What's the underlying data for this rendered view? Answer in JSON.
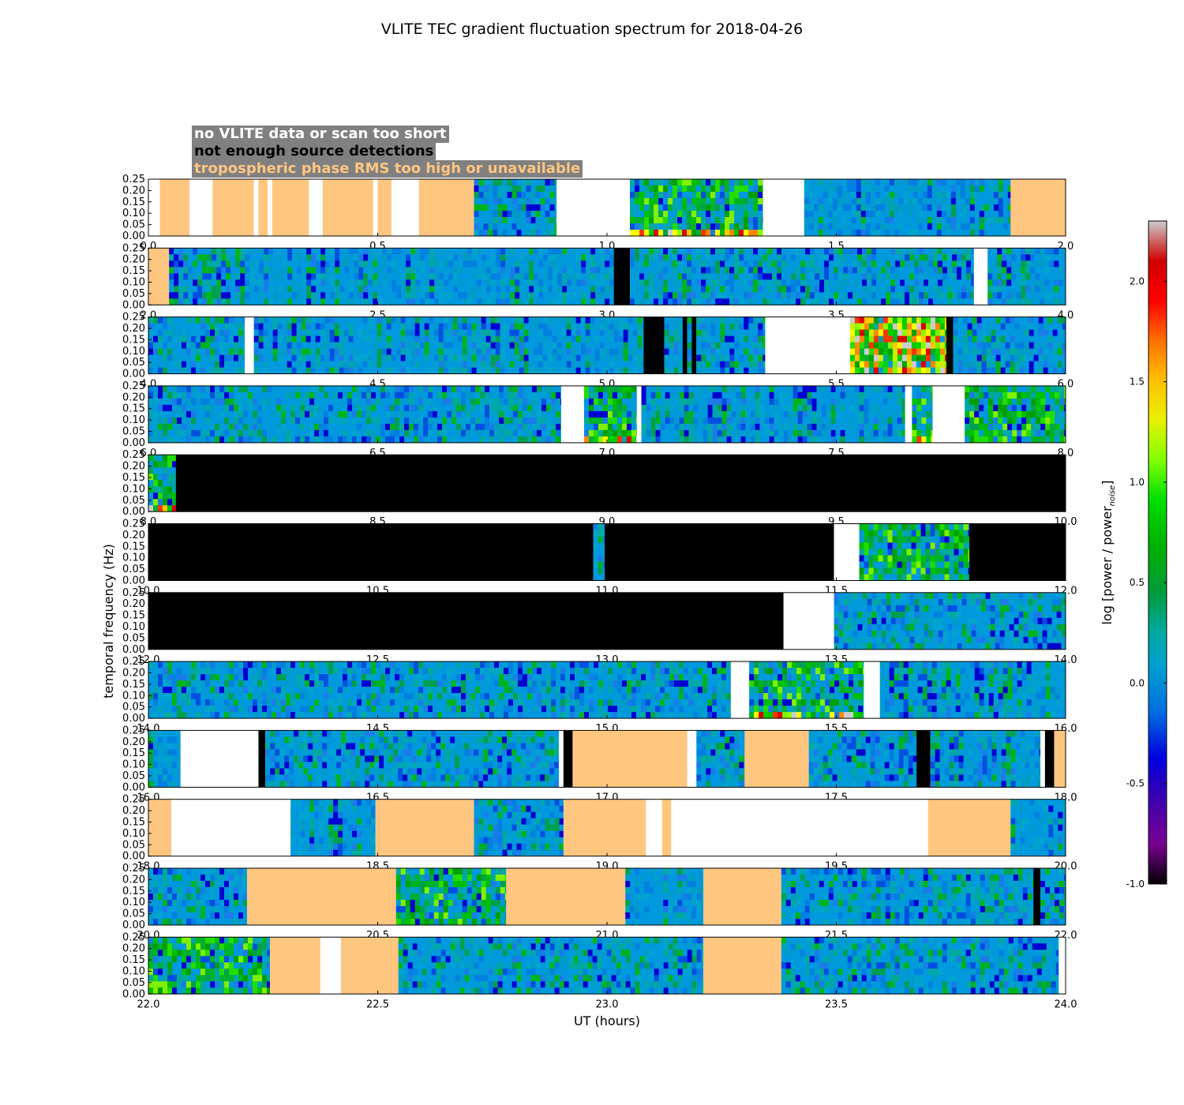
{
  "colors": {
    "no_data": "#ffffff",
    "few_detections": "#000000",
    "tropo_high": "#ffc680",
    "legend_box": "#808080"
  },
  "legend": {
    "no_data_label": "no VLITE data or scan too short",
    "few_detections_label": "not enough source detections",
    "tropo_label": "tropospheric phase RMS too high or unavailable"
  },
  "chart_data": {
    "type": "heatmap",
    "title": "VLITE TEC gradient fluctuation spectrum for 2018-04-26",
    "xlabel": "UT (hours)",
    "ylabel": "temporal frequency (Hz)",
    "ylim": [
      0,
      0.25
    ],
    "y_ticks": [
      "0.00",
      "0.05",
      "0.10",
      "0.15",
      "0.20",
      "0.25"
    ],
    "colorbar": {
      "label": "log [power / power",
      "label_sub": "noise",
      "label_end": "]",
      "range": [
        -1.0,
        2.3
      ],
      "ticks": [
        "-1.0",
        "-0.5",
        "0.0",
        "0.5",
        "1.0",
        "1.5",
        "2.0"
      ],
      "cmap": "nipy_spectral"
    },
    "panels": [
      {
        "x_ticks": [
          "0.0",
          "0.5",
          "1.0",
          "1.5",
          "2.0"
        ],
        "range": [
          0,
          2
        ],
        "segments": [
          [
            0.0,
            0.025,
            "white"
          ],
          [
            0.025,
            0.09,
            "tropo"
          ],
          [
            0.09,
            0.14,
            "white"
          ],
          [
            0.14,
            0.23,
            "tropo"
          ],
          [
            0.23,
            0.24,
            "white"
          ],
          [
            0.24,
            0.26,
            "tropo"
          ],
          [
            0.26,
            0.27,
            "white"
          ],
          [
            0.27,
            0.35,
            "tropo"
          ],
          [
            0.35,
            0.38,
            "white"
          ],
          [
            0.38,
            0.49,
            "tropo"
          ],
          [
            0.49,
            0.5,
            "white"
          ],
          [
            0.5,
            0.53,
            "tropo"
          ],
          [
            0.53,
            0.59,
            "white"
          ],
          [
            0.59,
            0.71,
            "tropo"
          ],
          [
            0.71,
            0.89,
            "data"
          ],
          [
            0.89,
            1.05,
            "white"
          ],
          [
            1.05,
            1.34,
            "data",
            2
          ],
          [
            1.34,
            1.43,
            "white"
          ],
          [
            1.43,
            1.88,
            "data",
            -1
          ],
          [
            1.88,
            2.0,
            "tropo"
          ]
        ]
      },
      {
        "x_ticks": [
          "2.0",
          "2.5",
          "3.0",
          "3.5",
          "4.0"
        ],
        "range": [
          2,
          4
        ],
        "segments": [
          [
            2.0,
            2.045,
            "tropo"
          ],
          [
            2.045,
            3.015,
            "data",
            -1
          ],
          [
            3.015,
            3.05,
            "black"
          ],
          [
            3.05,
            3.8,
            "data",
            0
          ],
          [
            3.8,
            3.83,
            "white"
          ],
          [
            3.83,
            4.0,
            "data",
            -1
          ]
        ]
      },
      {
        "x_ticks": [
          "4.0",
          "4.5",
          "5.0",
          "5.5",
          "6.0"
        ],
        "range": [
          4,
          6
        ],
        "segments": [
          [
            4.0,
            4.21,
            "data",
            0
          ],
          [
            4.21,
            4.23,
            "white"
          ],
          [
            4.23,
            5.08,
            "data",
            -1
          ],
          [
            5.08,
            5.125,
            "black"
          ],
          [
            5.125,
            5.165,
            "data"
          ],
          [
            5.165,
            5.175,
            "black"
          ],
          [
            5.175,
            5.185,
            "data"
          ],
          [
            5.185,
            5.195,
            "black"
          ],
          [
            5.195,
            5.345,
            "data"
          ],
          [
            5.345,
            5.53,
            "white"
          ],
          [
            5.53,
            5.74,
            "data",
            3
          ],
          [
            5.74,
            5.755,
            "black"
          ],
          [
            5.755,
            6.0,
            "data"
          ]
        ]
      },
      {
        "x_ticks": [
          "6.0",
          "6.5",
          "7.0",
          "7.5",
          "8.0"
        ],
        "range": [
          6,
          8
        ],
        "segments": [
          [
            6.0,
            6.9,
            "data"
          ],
          [
            6.9,
            6.95,
            "white"
          ],
          [
            6.95,
            7.065,
            "data",
            2
          ],
          [
            7.065,
            7.075,
            "white"
          ],
          [
            7.075,
            7.65,
            "data",
            -1
          ],
          [
            7.65,
            7.665,
            "white"
          ],
          [
            7.665,
            7.71,
            "data",
            2
          ],
          [
            7.71,
            7.78,
            "white"
          ],
          [
            7.78,
            8.0,
            "data",
            1
          ]
        ]
      },
      {
        "x_ticks": [
          "8.0",
          "8.5",
          "9.0",
          "9.5",
          "10.0"
        ],
        "range": [
          8,
          10
        ],
        "segments": [
          [
            8.0,
            8.06,
            "data",
            2
          ],
          [
            8.06,
            10.0,
            "black"
          ]
        ]
      },
      {
        "x_ticks": [
          "10.0",
          "10.5",
          "11.0",
          "11.5",
          "12.0"
        ],
        "range": [
          10,
          12
        ],
        "segments": [
          [
            10.0,
            10.97,
            "black"
          ],
          [
            10.97,
            10.995,
            "data",
            -1
          ],
          [
            10.995,
            11.495,
            "black"
          ],
          [
            11.495,
            11.55,
            "white"
          ],
          [
            11.55,
            11.79,
            "data",
            1
          ],
          [
            11.79,
            12.0,
            "black"
          ]
        ]
      },
      {
        "x_ticks": [
          "12.0",
          "12.5",
          "13.0",
          "13.5",
          "14.0"
        ],
        "range": [
          12,
          14
        ],
        "segments": [
          [
            12.0,
            13.385,
            "black"
          ],
          [
            13.385,
            13.495,
            "white"
          ],
          [
            13.495,
            14.0,
            "data"
          ]
        ]
      },
      {
        "x_ticks": [
          "14.0",
          "14.5",
          "15.0",
          "15.5",
          "16.0"
        ],
        "range": [
          14,
          16
        ],
        "segments": [
          [
            14.0,
            15.27,
            "data"
          ],
          [
            15.27,
            15.31,
            "white"
          ],
          [
            15.31,
            15.56,
            "data",
            2
          ],
          [
            15.56,
            15.595,
            "white"
          ],
          [
            15.595,
            16.0,
            "data",
            -1
          ]
        ]
      },
      {
        "x_ticks": [
          "16.0",
          "16.5",
          "17.0",
          "17.5",
          "18.0"
        ],
        "range": [
          16,
          18
        ],
        "segments": [
          [
            16.0,
            16.07,
            "data",
            -1
          ],
          [
            16.07,
            16.24,
            "white"
          ],
          [
            16.24,
            16.255,
            "black"
          ],
          [
            16.255,
            16.895,
            "data"
          ],
          [
            16.895,
            16.905,
            "white"
          ],
          [
            16.905,
            16.925,
            "black"
          ],
          [
            16.925,
            17.175,
            "tropo"
          ],
          [
            17.175,
            17.195,
            "white"
          ],
          [
            17.195,
            17.3,
            "data"
          ],
          [
            17.3,
            17.44,
            "tropo"
          ],
          [
            17.44,
            17.675,
            "data"
          ],
          [
            17.675,
            17.705,
            "black"
          ],
          [
            17.705,
            17.945,
            "data",
            -1
          ],
          [
            17.945,
            17.955,
            "white"
          ],
          [
            17.955,
            17.975,
            "black"
          ],
          [
            17.975,
            18.0,
            "tropo"
          ]
        ]
      },
      {
        "x_ticks": [
          "18.0",
          "18.5",
          "19.0",
          "19.5",
          "20.0"
        ],
        "range": [
          18,
          20
        ],
        "segments": [
          [
            18.0,
            18.05,
            "tropo"
          ],
          [
            18.05,
            18.31,
            "white"
          ],
          [
            18.31,
            18.495,
            "data",
            -1
          ],
          [
            18.495,
            18.71,
            "tropo"
          ],
          [
            18.71,
            18.905,
            "data"
          ],
          [
            18.905,
            19.085,
            "tropo"
          ],
          [
            19.085,
            19.12,
            "white"
          ],
          [
            19.12,
            19.14,
            "tropo"
          ],
          [
            19.14,
            19.7,
            "white"
          ],
          [
            19.7,
            19.88,
            "tropo"
          ],
          [
            19.88,
            20.0,
            "data",
            -1
          ]
        ]
      },
      {
        "x_ticks": [
          "20.0",
          "20.5",
          "21.0",
          "21.5",
          "22.0"
        ],
        "range": [
          20,
          22
        ],
        "segments": [
          [
            20.0,
            20.215,
            "data"
          ],
          [
            20.215,
            20.54,
            "tropo"
          ],
          [
            20.54,
            20.78,
            "data",
            1
          ],
          [
            20.78,
            21.04,
            "tropo"
          ],
          [
            21.04,
            21.21,
            "data",
            -1
          ],
          [
            21.21,
            21.38,
            "tropo"
          ],
          [
            21.38,
            21.93,
            "data"
          ],
          [
            21.93,
            21.945,
            "black"
          ],
          [
            21.945,
            22.0,
            "data"
          ]
        ]
      },
      {
        "x_ticks": [
          "22.0",
          "22.5",
          "23.0",
          "23.5",
          "24.0"
        ],
        "range": [
          22,
          24
        ],
        "segments": [
          [
            22.0,
            22.265,
            "data",
            1
          ],
          [
            22.265,
            22.375,
            "tropo"
          ],
          [
            22.375,
            22.42,
            "white"
          ],
          [
            22.42,
            22.545,
            "tropo"
          ],
          [
            22.545,
            23.21,
            "data"
          ],
          [
            23.21,
            23.38,
            "tropo"
          ],
          [
            23.38,
            23.985,
            "data"
          ],
          [
            23.985,
            24.0,
            "white"
          ]
        ]
      }
    ]
  }
}
